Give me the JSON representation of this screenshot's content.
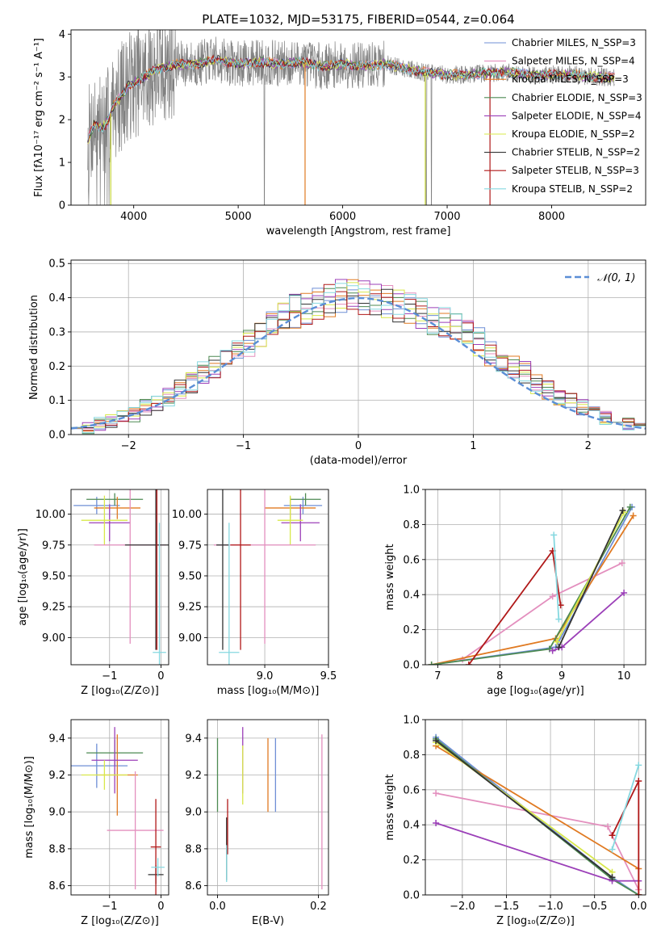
{
  "figure": {
    "title": "PLATE=1032, MJD=53175, FIBERID=0544, z=0.064"
  },
  "colors": {
    "chabrier_miles": "#6f8fd6",
    "salpeter_miles": "#e38fbe",
    "kroupa_miles": "#e07a22",
    "chabrier_elodie": "#4d8a52",
    "salpeter_elodie": "#9b3fb8",
    "kroupa_elodie": "#d8e84a",
    "chabrier_stelib": "#333333",
    "salpeter_stelib": "#b01818",
    "kroupa_stelib": "#86d8e0",
    "data": "#808080",
    "normal_curve": "#5b8ed6",
    "grid": "#b0b0b0"
  },
  "chart_data": [
    {
      "id": "spectrum",
      "type": "line",
      "xlabel": "wavelength [Angstrom, rest frame]",
      "ylabel": "Flux [fλ10⁻¹⁷ erg cm⁻² s⁻¹ A⁻¹]",
      "xlim": [
        3400,
        8900
      ],
      "ylim": [
        0,
        4.1
      ],
      "xticks": [
        4000,
        5000,
        6000,
        7000,
        8000
      ],
      "yticks": [
        0,
        1,
        2,
        3,
        4
      ],
      "grid": false,
      "legend_position": "right",
      "continuum": {
        "wavelength": [
          3560,
          3620,
          3700,
          3760,
          3800,
          3850,
          3900,
          3950,
          4000,
          4100,
          4200,
          4400,
          4600,
          4800,
          5000,
          5200,
          5400,
          5600,
          5800,
          6000,
          6200,
          6400,
          6600,
          6800,
          7000,
          7200,
          7400,
          7600,
          7800,
          8000,
          8200,
          8400,
          8600
        ],
        "flux": [
          1.5,
          1.9,
          1.8,
          2.0,
          2.3,
          2.45,
          2.6,
          2.8,
          2.85,
          3.0,
          3.15,
          3.3,
          3.3,
          3.4,
          3.3,
          3.35,
          3.3,
          3.35,
          3.25,
          3.3,
          3.25,
          3.3,
          3.2,
          3.1,
          3.05,
          3.05,
          3.1,
          3.1,
          3.05,
          3.05,
          3.05,
          3.0,
          3.0
        ]
      },
      "legend": [
        "Chabrier MILES, N_SSP=3",
        "Salpeter MILES, N_SSP=4",
        "Kroupa MILES, N_SSP=3",
        "Chabrier ELODIE, N_SSP=3",
        "Salpeter ELODIE, N_SSP=4",
        "Kroupa ELODIE, N_SSP=2",
        "Chabrier STELIB, N_SSP=2",
        "Salpeter STELIB, N_SSP=3",
        "Kroupa STELIB, N_SSP=2"
      ]
    },
    {
      "id": "residuals",
      "type": "histogram",
      "xlabel": "(data-model)/error",
      "ylabel": "Normed distribution",
      "xlim": [
        -2.5,
        2.5
      ],
      "ylim": [
        0,
        0.51
      ],
      "xticks": [
        -2,
        -1,
        0,
        1,
        2
      ],
      "yticks": [
        0.0,
        0.1,
        0.2,
        0.3,
        0.4,
        0.5
      ],
      "grid": true,
      "legend": [
        "𝒩(0, 1)"
      ],
      "legend_position": "top-right",
      "bin_edges": [
        -2.5,
        -2.4,
        -2.3,
        -2.2,
        -2.1,
        -2.0,
        -1.9,
        -1.8,
        -1.7,
        -1.6,
        -1.5,
        -1.4,
        -1.3,
        -1.2,
        -1.1,
        -1.0,
        -0.9,
        -0.8,
        -0.7,
        -0.6,
        -0.5,
        -0.4,
        -0.3,
        -0.2,
        -0.1,
        0.0,
        0.1,
        0.2,
        0.3,
        0.4,
        0.5,
        0.6,
        0.7,
        0.8,
        0.9,
        1.0,
        1.1,
        1.2,
        1.3,
        1.4,
        1.5,
        1.6,
        1.7,
        1.8,
        1.9,
        2.0,
        2.1,
        2.2,
        2.3,
        2.4,
        2.5
      ],
      "base_density": [
        0.02,
        0.02,
        0.03,
        0.04,
        0.05,
        0.06,
        0.08,
        0.09,
        0.11,
        0.13,
        0.15,
        0.18,
        0.2,
        0.22,
        0.25,
        0.27,
        0.3,
        0.32,
        0.34,
        0.36,
        0.37,
        0.38,
        0.39,
        0.4,
        0.4,
        0.4,
        0.39,
        0.39,
        0.38,
        0.37,
        0.36,
        0.34,
        0.33,
        0.31,
        0.29,
        0.27,
        0.24,
        0.22,
        0.2,
        0.18,
        0.15,
        0.13,
        0.11,
        0.1,
        0.08,
        0.07,
        0.05,
        0.04,
        0.03,
        0.03
      ]
    },
    {
      "id": "age_vs_Z",
      "type": "errorbar",
      "xlabel": "Z [log₁₀(Z/Z⊙)]",
      "ylabel": "age  [log₁₀(age/yr)]",
      "xlim": [
        -1.75,
        0.15
      ],
      "ylim": [
        8.78,
        10.2
      ],
      "xticks": [
        -1,
        0
      ],
      "xticklabels": [
        "−1",
        "0"
      ],
      "yticks": [
        9.0,
        9.25,
        9.5,
        9.75,
        10.0
      ],
      "yticklabels": [
        "9.00",
        "9.25",
        "9.50",
        "9.75",
        "10.00"
      ],
      "grid": true,
      "points": [
        {
          "c": "chabrier_miles",
          "x": -1.25,
          "y": 10.07,
          "xe": 0.45,
          "ye": 0.07
        },
        {
          "c": "chabrier_elodie",
          "x": -0.9,
          "y": 10.12,
          "xe": 0.55,
          "ye": 0.05
        },
        {
          "c": "kroupa_miles",
          "x": -0.85,
          "y": 10.05,
          "xe": 0.45,
          "ye": 0.09
        },
        {
          "c": "salpeter_elodie",
          "x": -1.0,
          "y": 9.93,
          "xe": 0.4,
          "ye": 0.15
        },
        {
          "c": "kroupa_elodie",
          "x": -1.1,
          "y": 9.95,
          "xe": 0.45,
          "ye": 0.2
        },
        {
          "c": "salpeter_miles",
          "x": -0.6,
          "y": 9.75,
          "xe": 0.7,
          "ye": 0.8
        },
        {
          "c": "chabrier_stelib",
          "x": -0.1,
          "y": 9.75,
          "xe": 0.6,
          "ye": 0.85
        },
        {
          "c": "salpeter_stelib",
          "x": -0.08,
          "y": 9.75,
          "xe": 0.0,
          "ye": 0.85
        },
        {
          "c": "kroupa_stelib",
          "x": -0.03,
          "y": 8.88,
          "xe": 0.13,
          "ye": 1.05
        }
      ]
    },
    {
      "id": "age_vs_mass",
      "type": "errorbar",
      "xlabel": "mass [log₁₀(M/M⊙)]",
      "ylabel": "",
      "xlim": [
        8.55,
        9.5
      ],
      "ylim": [
        8.78,
        10.2
      ],
      "xticks": [
        9.0,
        9.5
      ],
      "xticklabels": [
        "9.0",
        "9.5"
      ],
      "yticks": [
        9.0,
        9.25,
        9.5,
        9.75,
        10.0
      ],
      "yticklabels": [
        "9.00",
        "9.25",
        "9.50",
        "9.75",
        "10.00"
      ],
      "grid": true,
      "points": [
        {
          "c": "chabrier_miles",
          "x": 9.3,
          "y": 10.07,
          "xe": 0.15,
          "ye": 0.07
        },
        {
          "c": "chabrier_elodie",
          "x": 9.32,
          "y": 10.12,
          "xe": 0.12,
          "ye": 0.05
        },
        {
          "c": "kroupa_miles",
          "x": 9.2,
          "y": 10.05,
          "xe": 0.2,
          "ye": 0.09
        },
        {
          "c": "salpeter_elodie",
          "x": 9.28,
          "y": 9.93,
          "xe": 0.15,
          "ye": 0.15
        },
        {
          "c": "kroupa_elodie",
          "x": 9.2,
          "y": 9.95,
          "xe": 0.1,
          "ye": 0.2
        },
        {
          "c": "salpeter_miles",
          "x": 9.0,
          "y": 9.75,
          "xe": 0.4,
          "ye": 0.8
        },
        {
          "c": "chabrier_stelib",
          "x": 8.67,
          "y": 9.75,
          "xe": 0.05,
          "ye": 0.85
        },
        {
          "c": "salpeter_stelib",
          "x": 8.81,
          "y": 9.75,
          "xe": 0.08,
          "ye": 0.85
        },
        {
          "c": "kroupa_stelib",
          "x": 8.72,
          "y": 8.88,
          "xe": 0.08,
          "ye": 1.05
        }
      ]
    },
    {
      "id": "weight_vs_age",
      "type": "line",
      "xlabel": "age  [log₁₀(age/yr)]",
      "ylabel": "mass weight",
      "xlim": [
        6.8,
        10.35
      ],
      "ylim": [
        0,
        1.0
      ],
      "xticks": [
        7,
        8,
        9,
        10
      ],
      "xticklabels": [
        "7",
        "8",
        "9",
        "10"
      ],
      "yticks": [
        0.0,
        0.2,
        0.4,
        0.6,
        0.8,
        1.0
      ],
      "yticklabels": [
        "0.0",
        "0.2",
        "0.4",
        "0.6",
        "0.8",
        "1.0"
      ],
      "grid": true,
      "series": [
        {
          "c": "chabrier_miles",
          "x": [
            6.9,
            8.9,
            10.13
          ],
          "y": [
            0.0,
            0.1,
            0.9
          ]
        },
        {
          "c": "salpeter_miles",
          "x": [
            7.4,
            8.85,
            9.97
          ],
          "y": [
            0.03,
            0.39,
            0.58
          ]
        },
        {
          "c": "kroupa_miles",
          "x": [
            6.9,
            8.9,
            10.15
          ],
          "y": [
            0.0,
            0.15,
            0.85
          ]
        },
        {
          "c": "chabrier_elodie",
          "x": [
            6.9,
            8.8,
            10.1
          ],
          "y": [
            0.0,
            0.09,
            0.9
          ]
        },
        {
          "c": "salpeter_elodie",
          "x": [
            8.85,
            9.0,
            10.0
          ],
          "y": [
            0.08,
            0.1,
            0.41
          ]
        },
        {
          "c": "kroupa_elodie",
          "x": [
            8.92,
            10.0
          ],
          "y": [
            0.13,
            0.87
          ]
        },
        {
          "c": "chabrier_stelib",
          "x": [
            8.95,
            9.98
          ],
          "y": [
            0.1,
            0.88
          ]
        },
        {
          "c": "salpeter_stelib",
          "x": [
            7.5,
            8.85,
            8.98
          ],
          "y": [
            0.0,
            0.65,
            0.34
          ]
        },
        {
          "c": "kroupa_stelib",
          "x": [
            8.87,
            8.95
          ],
          "y": [
            0.74,
            0.26
          ]
        }
      ]
    },
    {
      "id": "mass_vs_Z",
      "type": "errorbar",
      "xlabel": "Z [log₁₀(Z/Z⊙)]",
      "ylabel": "mass [log₁₀(M/M⊙)]",
      "xlim": [
        -1.75,
        0.15
      ],
      "ylim": [
        8.55,
        9.5
      ],
      "xticks": [
        -1,
        0
      ],
      "xticklabels": [
        "−1",
        "0"
      ],
      "yticks": [
        8.6,
        8.8,
        9.0,
        9.2,
        9.4
      ],
      "yticklabels": [
        "8.6",
        "8.8",
        "9.0",
        "9.2",
        "9.4"
      ],
      "grid": true,
      "points": [
        {
          "c": "chabrier_miles",
          "x": -1.25,
          "y": 9.25,
          "xe": 0.6,
          "ye": 0.12
        },
        {
          "c": "chabrier_elodie",
          "x": -0.9,
          "y": 9.32,
          "xe": 0.55,
          "ye": 0.07
        },
        {
          "c": "kroupa_miles",
          "x": -0.85,
          "y": 9.2,
          "xe": 0.4,
          "ye": 0.22
        },
        {
          "c": "salpeter_elodie",
          "x": -0.9,
          "y": 9.28,
          "xe": 0.45,
          "ye": 0.18
        },
        {
          "c": "kroupa_elodie",
          "x": -1.1,
          "y": 9.2,
          "xe": 0.45,
          "ye": 0.08
        },
        {
          "c": "salpeter_miles",
          "x": -0.5,
          "y": 8.9,
          "xe": 0.55,
          "ye": 0.32
        },
        {
          "c": "chabrier_stelib",
          "x": -0.1,
          "y": 8.66,
          "xe": 0.15,
          "ye": 0.05
        },
        {
          "c": "salpeter_stelib",
          "x": -0.1,
          "y": 8.81,
          "xe": 0.1,
          "ye": 0.26
        },
        {
          "c": "kroupa_stelib",
          "x": -0.06,
          "y": 8.7,
          "xe": 0.13,
          "ye": 0.05
        }
      ]
    },
    {
      "id": "mass_vs_ebv",
      "type": "errorbar",
      "xlabel": "E(B-V)",
      "ylabel": "",
      "xlim": [
        -0.02,
        0.22
      ],
      "ylim": [
        8.55,
        9.5
      ],
      "xticks": [
        0.0,
        0.2
      ],
      "xticklabels": [
        "0.0",
        "0.2"
      ],
      "yticks": [
        8.6,
        8.8,
        9.0,
        9.2,
        9.4
      ],
      "yticklabels": [
        "8.6",
        "8.8",
        "9.0",
        "9.2",
        "9.4"
      ],
      "grid": true,
      "points": [
        {
          "c": "chabrier_miles",
          "x": 0.115,
          "y": 9.2,
          "xe": 0.0,
          "ye": 0.2
        },
        {
          "c": "chabrier_elodie",
          "x": 0.0,
          "y": 9.2,
          "xe": 0.0,
          "ye": 0.2
        },
        {
          "c": "kroupa_miles",
          "x": 0.1,
          "y": 9.2,
          "xe": 0.0,
          "ye": 0.2
        },
        {
          "c": "salpeter_elodie",
          "x": 0.05,
          "y": 9.28,
          "xe": 0.0,
          "ye": 0.18
        },
        {
          "c": "kroupa_elodie",
          "x": 0.05,
          "y": 9.2,
          "xe": 0.0,
          "ye": 0.16
        },
        {
          "c": "salpeter_miles",
          "x": 0.207,
          "y": 9.0,
          "xe": 0.0,
          "ye": 0.42
        },
        {
          "c": "chabrier_stelib",
          "x": 0.018,
          "y": 8.8,
          "xe": 0.0,
          "ye": 0.17
        },
        {
          "c": "salpeter_stelib",
          "x": 0.02,
          "y": 8.92,
          "xe": 0.0,
          "ye": 0.15
        },
        {
          "c": "kroupa_stelib",
          "x": 0.018,
          "y": 8.72,
          "xe": 0.0,
          "ye": 0.1
        }
      ]
    },
    {
      "id": "weight_vs_Z",
      "type": "line",
      "xlabel": "Z [log₁₀(Z/Z⊙)]",
      "ylabel": "mass weight",
      "xlim": [
        -2.42,
        0.08
      ],
      "ylim": [
        0,
        1.0
      ],
      "xticks": [
        -2.0,
        -1.5,
        -1.0,
        -0.5,
        0.0
      ],
      "xticklabels": [
        "−2.0",
        "−1.5",
        "−1.0",
        "−0.5",
        "0.0"
      ],
      "yticks": [
        0.0,
        0.2,
        0.4,
        0.6,
        0.8,
        1.0
      ],
      "yticklabels": [
        "0.0",
        "0.2",
        "0.4",
        "0.6",
        "0.8",
        "1.0"
      ],
      "grid": true,
      "series": [
        {
          "c": "chabrier_miles",
          "x": [
            -2.3,
            -0.3,
            0.0
          ],
          "y": [
            0.9,
            0.1,
            0.0
          ]
        },
        {
          "c": "salpeter_miles",
          "x": [
            -2.3,
            -0.35,
            0.0
          ],
          "y": [
            0.58,
            0.39,
            0.03
          ]
        },
        {
          "c": "kroupa_miles",
          "x": [
            -2.3,
            0.0,
            0.0
          ],
          "y": [
            0.85,
            0.15,
            0.0
          ]
        },
        {
          "c": "chabrier_elodie",
          "x": [
            -2.3,
            -0.3,
            0.0
          ],
          "y": [
            0.89,
            0.09,
            0.0
          ]
        },
        {
          "c": "salpeter_elodie",
          "x": [
            -2.3,
            -0.3,
            0.0
          ],
          "y": [
            0.41,
            0.08,
            0.08
          ]
        },
        {
          "c": "kroupa_elodie",
          "x": [
            -2.3,
            -0.3
          ],
          "y": [
            0.87,
            0.13
          ]
        },
        {
          "c": "chabrier_stelib",
          "x": [
            -2.3,
            -0.3
          ],
          "y": [
            0.88,
            0.1
          ]
        },
        {
          "c": "salpeter_stelib",
          "x": [
            -0.3,
            0.0,
            0.0
          ],
          "y": [
            0.34,
            0.65,
            0.0
          ]
        },
        {
          "c": "kroupa_stelib",
          "x": [
            -0.3,
            0.0
          ],
          "y": [
            0.26,
            0.74
          ]
        }
      ]
    }
  ]
}
